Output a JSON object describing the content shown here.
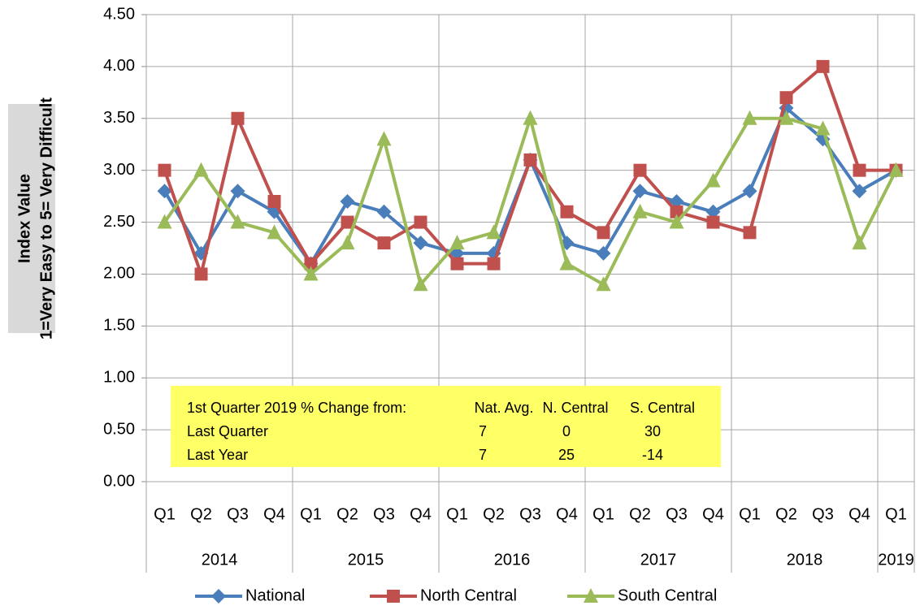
{
  "chart_data": {
    "type": "line",
    "y_label_lines": [
      "Index Value",
      "1=Very Easy to 5= Very Difficult"
    ],
    "categories": [
      "Q1",
      "Q2",
      "Q3",
      "Q4",
      "Q1",
      "Q2",
      "Q3",
      "Q4",
      "Q1",
      "Q2",
      "Q3",
      "Q4",
      "Q1",
      "Q2",
      "Q3",
      "Q4",
      "Q1",
      "Q2",
      "Q3",
      "Q4",
      "Q1"
    ],
    "years": [
      "2014",
      "2014",
      "2014",
      "2014",
      "2015",
      "2015",
      "2015",
      "2015",
      "2016",
      "2016",
      "2016",
      "2016",
      "2017",
      "2017",
      "2017",
      "2017",
      "2018",
      "2018",
      "2018",
      "2018",
      "2019"
    ],
    "series": [
      {
        "name": "National",
        "color": "#4a7ebb",
        "marker": "diamond",
        "values": [
          2.8,
          2.2,
          2.8,
          2.6,
          2.1,
          2.7,
          2.6,
          2.3,
          2.2,
          2.2,
          3.1,
          2.3,
          2.2,
          2.8,
          2.7,
          2.6,
          2.8,
          3.6,
          3.3,
          2.8,
          3.0
        ]
      },
      {
        "name": "North Central",
        "color": "#c0504d",
        "marker": "square",
        "values": [
          3.0,
          2.0,
          3.5,
          2.7,
          2.1,
          2.5,
          2.3,
          2.5,
          2.1,
          2.1,
          3.1,
          2.6,
          2.4,
          3.0,
          2.6,
          2.5,
          2.4,
          3.7,
          4.0,
          3.0,
          3.0
        ]
      },
      {
        "name": "South Central",
        "color": "#9bbb59",
        "marker": "triangle",
        "values": [
          2.5,
          3.0,
          2.5,
          2.4,
          2.0,
          2.3,
          3.3,
          1.9,
          2.3,
          2.4,
          3.5,
          2.1,
          1.9,
          2.6,
          2.5,
          2.9,
          3.5,
          3.5,
          3.4,
          2.3,
          3.0
        ]
      }
    ],
    "ylim": [
      0,
      4.5
    ],
    "yticks": [
      {
        "value": 0,
        "label": "0.00"
      },
      {
        "value": 0.5,
        "label": "0.50"
      },
      {
        "value": 1,
        "label": "1.00"
      },
      {
        "value": 1.5,
        "label": "1.50"
      },
      {
        "value": 2,
        "label": "2.00"
      },
      {
        "value": 2.5,
        "label": "2.50"
      },
      {
        "value": 3,
        "label": "3.00"
      },
      {
        "value": 3.5,
        "label": "3.50"
      },
      {
        "value": 4,
        "label": "4.00"
      },
      {
        "value": 4.5,
        "label": "4.50"
      }
    ],
    "grid": true,
    "legend": "bottom",
    "table": {
      "header": [
        "1st Quarter 2019 % Change from:",
        "Nat. Avg.",
        "N. Central",
        "S. Central"
      ],
      "rows": [
        {
          "label": "Last Quarter",
          "values": [
            7,
            0,
            30
          ]
        },
        {
          "label": "Last Year",
          "values": [
            7,
            25,
            -14
          ]
        }
      ]
    }
  }
}
